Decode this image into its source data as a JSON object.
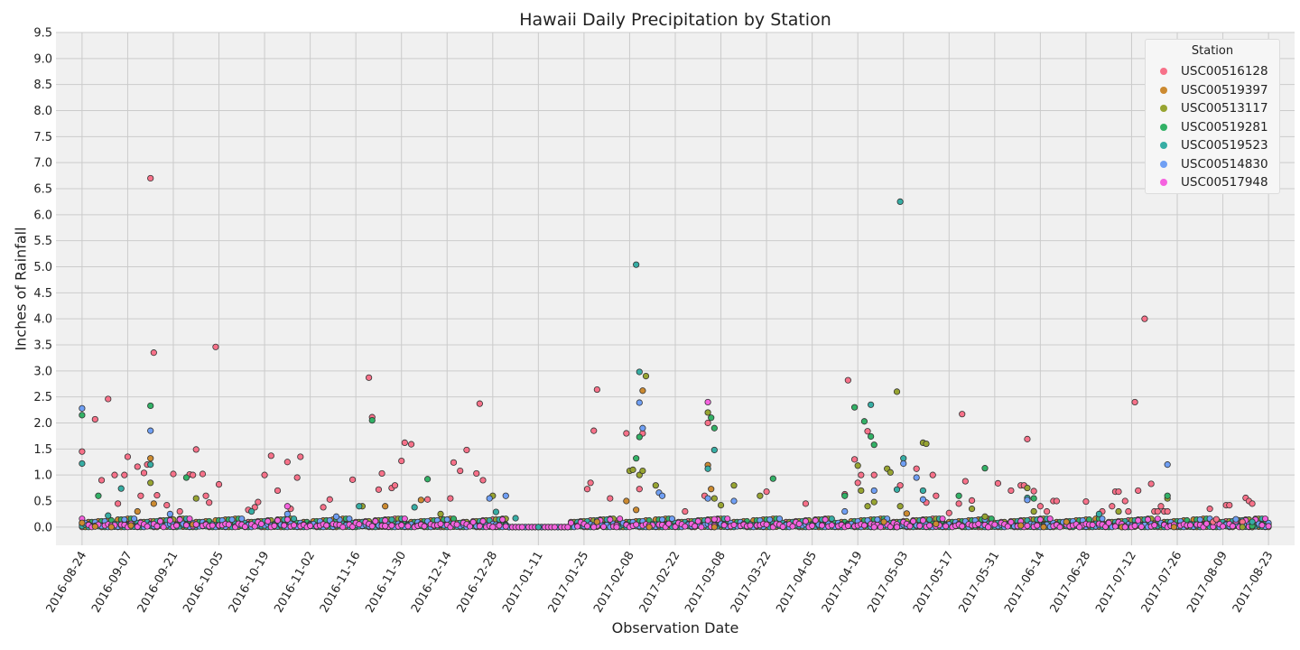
{
  "chart_data": {
    "type": "scatter",
    "title": "Hawaii Daily Precipitation by Station",
    "xlabel": "Observation Date",
    "ylabel": "Inches of Rainfall",
    "xlim": [
      "2016-08-16",
      "2017-08-31"
    ],
    "ylim": [
      -0.35,
      9.5
    ],
    "yticks": [
      0.0,
      0.5,
      1.0,
      1.5,
      2.0,
      2.5,
      3.0,
      3.5,
      4.0,
      4.5,
      5.0,
      5.5,
      6.0,
      6.5,
      7.0,
      7.5,
      8.0,
      8.5,
      9.0,
      9.5
    ],
    "ytick_labels": [
      "0.0",
      "0.5",
      "1.0",
      "1.5",
      "2.0",
      "2.5",
      "3.0",
      "3.5",
      "4.0",
      "4.5",
      "5.0",
      "5.5",
      "6.0",
      "6.5",
      "7.0",
      "7.5",
      "8.0",
      "8.5",
      "9.0",
      "9.5"
    ],
    "xticks": [
      "2016-08-24",
      "2016-09-07",
      "2016-09-21",
      "2016-10-05",
      "2016-10-19",
      "2016-11-02",
      "2016-11-16",
      "2016-11-30",
      "2016-12-14",
      "2016-12-28",
      "2017-01-11",
      "2017-01-25",
      "2017-02-08",
      "2017-02-22",
      "2017-03-08",
      "2017-03-22",
      "2017-04-05",
      "2017-04-19",
      "2017-05-03",
      "2017-05-17",
      "2017-05-31",
      "2017-06-14",
      "2017-06-28",
      "2017-07-12",
      "2017-07-26",
      "2017-08-09",
      "2017-08-23"
    ],
    "grid": true,
    "legend": {
      "title": "Station",
      "placement": "top-right"
    },
    "series": [
      {
        "name": "USC00516128",
        "color": "#f77189",
        "points": [
          [
            "2016-08-24",
            1.45
          ],
          [
            "2016-08-28",
            2.07
          ],
          [
            "2016-08-30",
            0.9
          ],
          [
            "2016-09-01",
            2.46
          ],
          [
            "2016-09-03",
            1.0
          ],
          [
            "2016-09-04",
            0.45
          ],
          [
            "2016-09-06",
            1.0
          ],
          [
            "2016-09-07",
            1.35
          ],
          [
            "2016-09-10",
            1.16
          ],
          [
            "2016-09-11",
            0.6
          ],
          [
            "2016-09-12",
            1.04
          ],
          [
            "2016-09-13",
            1.2
          ],
          [
            "2016-09-14",
            6.7
          ],
          [
            "2016-09-15",
            3.35
          ],
          [
            "2016-09-16",
            0.61
          ],
          [
            "2016-09-19",
            0.42
          ],
          [
            "2016-09-21",
            1.02
          ],
          [
            "2016-09-23",
            0.3
          ],
          [
            "2016-09-26",
            1.01
          ],
          [
            "2016-09-27",
            1.0
          ],
          [
            "2016-09-28",
            1.49
          ],
          [
            "2016-09-30",
            1.02
          ],
          [
            "2016-10-01",
            0.6
          ],
          [
            "2016-10-02",
            0.47
          ],
          [
            "2016-10-04",
            3.46
          ],
          [
            "2016-10-05",
            0.82
          ],
          [
            "2016-10-14",
            0.33
          ],
          [
            "2016-10-16",
            0.38
          ],
          [
            "2016-10-17",
            0.48
          ],
          [
            "2016-10-19",
            1.0
          ],
          [
            "2016-10-21",
            1.37
          ],
          [
            "2016-10-23",
            0.7
          ],
          [
            "2016-10-26",
            1.25
          ],
          [
            "2016-10-27",
            0.35
          ],
          [
            "2016-10-29",
            0.95
          ],
          [
            "2016-10-30",
            1.35
          ],
          [
            "2016-11-06",
            0.38
          ],
          [
            "2016-11-08",
            0.53
          ],
          [
            "2016-11-15",
            0.91
          ],
          [
            "2016-11-20",
            2.87
          ],
          [
            "2016-11-21",
            2.11
          ],
          [
            "2016-11-23",
            0.72
          ],
          [
            "2016-11-24",
            1.03
          ],
          [
            "2016-11-27",
            0.75
          ],
          [
            "2016-11-28",
            0.8
          ],
          [
            "2016-11-30",
            1.27
          ],
          [
            "2016-12-01",
            1.62
          ],
          [
            "2016-12-03",
            1.59
          ],
          [
            "2016-12-08",
            0.53
          ],
          [
            "2016-12-15",
            0.55
          ],
          [
            "2016-12-16",
            1.24
          ],
          [
            "2016-12-18",
            1.08
          ],
          [
            "2016-12-20",
            1.48
          ],
          [
            "2016-12-23",
            1.03
          ],
          [
            "2016-12-24",
            2.37
          ],
          [
            "2016-12-25",
            0.9
          ],
          [
            "2017-01-26",
            0.73
          ],
          [
            "2017-01-27",
            0.85
          ],
          [
            "2017-01-28",
            1.85
          ],
          [
            "2017-01-29",
            2.64
          ],
          [
            "2017-02-02",
            0.55
          ],
          [
            "2017-02-07",
            1.8
          ],
          [
            "2017-02-11",
            0.73
          ],
          [
            "2017-02-12",
            1.8
          ],
          [
            "2017-02-25",
            0.3
          ],
          [
            "2017-03-03",
            0.6
          ],
          [
            "2017-03-04",
            2.0
          ],
          [
            "2017-03-22",
            0.68
          ],
          [
            "2017-04-03",
            0.45
          ],
          [
            "2017-04-15",
            0.63
          ],
          [
            "2017-04-16",
            2.82
          ],
          [
            "2017-04-18",
            1.3
          ],
          [
            "2017-04-19",
            0.85
          ],
          [
            "2017-04-20",
            1.0
          ],
          [
            "2017-04-22",
            1.84
          ],
          [
            "2017-04-24",
            1.0
          ],
          [
            "2017-05-02",
            0.8
          ],
          [
            "2017-05-07",
            1.12
          ],
          [
            "2017-05-10",
            0.47
          ],
          [
            "2017-05-12",
            1.0
          ],
          [
            "2017-05-13",
            0.6
          ],
          [
            "2017-05-17",
            0.27
          ],
          [
            "2017-05-20",
            0.45
          ],
          [
            "2017-05-21",
            2.17
          ],
          [
            "2017-05-22",
            0.88
          ],
          [
            "2017-05-24",
            0.51
          ],
          [
            "2017-06-01",
            0.84
          ],
          [
            "2017-06-05",
            0.7
          ],
          [
            "2017-06-08",
            0.8
          ],
          [
            "2017-06-09",
            0.8
          ],
          [
            "2017-06-10",
            1.69
          ],
          [
            "2017-06-12",
            0.69
          ],
          [
            "2017-06-14",
            0.4
          ],
          [
            "2017-06-16",
            0.3
          ],
          [
            "2017-06-18",
            0.5
          ],
          [
            "2017-06-19",
            0.5
          ],
          [
            "2017-06-28",
            0.49
          ],
          [
            "2017-07-03",
            0.3
          ],
          [
            "2017-07-06",
            0.4
          ],
          [
            "2017-07-07",
            0.68
          ],
          [
            "2017-07-08",
            0.68
          ],
          [
            "2017-07-10",
            0.5
          ],
          [
            "2017-07-11",
            0.3
          ],
          [
            "2017-07-13",
            2.4
          ],
          [
            "2017-07-14",
            0.7
          ],
          [
            "2017-07-16",
            4.0
          ],
          [
            "2017-07-18",
            0.83
          ],
          [
            "2017-07-19",
            0.3
          ],
          [
            "2017-07-20",
            0.3
          ],
          [
            "2017-07-21",
            0.4
          ],
          [
            "2017-07-22",
            0.3
          ],
          [
            "2017-07-23",
            0.3
          ],
          [
            "2017-08-05",
            0.35
          ],
          [
            "2017-08-06",
            0.1
          ],
          [
            "2017-08-07",
            0.15
          ],
          [
            "2017-08-10",
            0.42
          ],
          [
            "2017-08-11",
            0.42
          ],
          [
            "2017-08-15",
            0.1
          ],
          [
            "2017-08-16",
            0.56
          ],
          [
            "2017-08-17",
            0.5
          ],
          [
            "2017-08-18",
            0.45
          ]
        ]
      },
      {
        "name": "USC00519397",
        "color": "#cc8a30",
        "points": [
          [
            "2016-08-24",
            0.08
          ],
          [
            "2016-08-28",
            0.01
          ],
          [
            "2016-09-02",
            0.0
          ],
          [
            "2016-09-08",
            0.03
          ],
          [
            "2016-09-10",
            0.3
          ],
          [
            "2016-09-14",
            1.32
          ],
          [
            "2016-09-15",
            0.45
          ],
          [
            "2016-09-27",
            0.05
          ],
          [
            "2016-11-25",
            0.4
          ],
          [
            "2016-12-06",
            0.52
          ],
          [
            "2017-01-29",
            0.1
          ],
          [
            "2017-02-07",
            0.5
          ],
          [
            "2017-02-10",
            0.33
          ],
          [
            "2017-02-12",
            2.62
          ],
          [
            "2017-02-14",
            0.0
          ],
          [
            "2017-03-04",
            1.19
          ],
          [
            "2017-03-05",
            0.73
          ],
          [
            "2017-03-06",
            0.0
          ],
          [
            "2017-04-27",
            0.1
          ],
          [
            "2017-05-01",
            0.0
          ],
          [
            "2017-05-04",
            0.26
          ],
          [
            "2017-05-13",
            0.06
          ],
          [
            "2017-06-08",
            0.03
          ],
          [
            "2017-06-15",
            0.0
          ],
          [
            "2017-06-22",
            0.1
          ],
          [
            "2017-07-09",
            0.0
          ],
          [
            "2017-07-25",
            0.0
          ],
          [
            "2017-08-18",
            0.0
          ]
        ]
      },
      {
        "name": "USC00513117",
        "color": "#97a431",
        "points": [
          [
            "2016-09-14",
            0.85
          ],
          [
            "2016-09-28",
            0.55
          ],
          [
            "2016-11-18",
            0.4
          ],
          [
            "2016-12-12",
            0.25
          ],
          [
            "2016-12-28",
            0.6
          ],
          [
            "2017-02-08",
            1.08
          ],
          [
            "2017-02-09",
            1.1
          ],
          [
            "2017-02-11",
            1.0
          ],
          [
            "2017-02-12",
            1.08
          ],
          [
            "2017-02-13",
            2.9
          ],
          [
            "2017-02-16",
            0.8
          ],
          [
            "2017-03-04",
            2.2
          ],
          [
            "2017-03-06",
            0.55
          ],
          [
            "2017-03-08",
            0.42
          ],
          [
            "2017-03-12",
            0.8
          ],
          [
            "2017-03-20",
            0.6
          ],
          [
            "2017-04-19",
            1.18
          ],
          [
            "2017-04-20",
            0.7
          ],
          [
            "2017-04-22",
            0.4
          ],
          [
            "2017-04-24",
            0.48
          ],
          [
            "2017-04-28",
            1.12
          ],
          [
            "2017-04-29",
            1.05
          ],
          [
            "2017-05-01",
            2.6
          ],
          [
            "2017-05-02",
            0.4
          ],
          [
            "2017-05-09",
            1.62
          ],
          [
            "2017-05-10",
            1.6
          ],
          [
            "2017-05-24",
            0.35
          ],
          [
            "2017-05-28",
            0.2
          ],
          [
            "2017-06-10",
            0.75
          ],
          [
            "2017-06-12",
            0.3
          ],
          [
            "2017-07-08",
            0.3
          ],
          [
            "2017-07-23",
            0.55
          ],
          [
            "2017-08-15",
            0.0
          ]
        ]
      },
      {
        "name": "USC00519281",
        "color": "#32b166",
        "points": [
          [
            "2016-08-24",
            2.15
          ],
          [
            "2016-08-29",
            0.6
          ],
          [
            "2016-09-14",
            2.33
          ],
          [
            "2016-09-25",
            0.95
          ],
          [
            "2016-11-21",
            2.05
          ],
          [
            "2016-12-08",
            0.92
          ],
          [
            "2017-02-10",
            1.32
          ],
          [
            "2017-02-11",
            1.73
          ],
          [
            "2017-03-05",
            2.1
          ],
          [
            "2017-03-06",
            1.9
          ],
          [
            "2017-03-24",
            0.93
          ],
          [
            "2017-04-15",
            0.6
          ],
          [
            "2017-04-18",
            2.3
          ],
          [
            "2017-04-21",
            2.03
          ],
          [
            "2017-04-23",
            1.74
          ],
          [
            "2017-04-24",
            1.58
          ],
          [
            "2017-05-20",
            0.6
          ],
          [
            "2017-05-28",
            1.13
          ],
          [
            "2017-06-12",
            0.55
          ],
          [
            "2017-07-23",
            0.6
          ],
          [
            "2017-08-18",
            0.02
          ]
        ]
      },
      {
        "name": "USC00519523",
        "color": "#36ada4",
        "points": [
          [
            "2016-08-24",
            1.22
          ],
          [
            "2016-09-01",
            0.22
          ],
          [
            "2016-09-05",
            0.74
          ],
          [
            "2016-09-14",
            1.2
          ],
          [
            "2016-10-15",
            0.3
          ],
          [
            "2016-11-17",
            0.4
          ],
          [
            "2016-12-04",
            0.38
          ],
          [
            "2016-12-29",
            0.29
          ],
          [
            "2017-01-04",
            0.17
          ],
          [
            "2017-01-11",
            0.0
          ],
          [
            "2017-02-10",
            5.04
          ],
          [
            "2017-02-11",
            2.98
          ],
          [
            "2017-03-04",
            1.12
          ],
          [
            "2017-03-06",
            1.48
          ],
          [
            "2017-04-23",
            2.35
          ],
          [
            "2017-05-01",
            0.72
          ],
          [
            "2017-05-02",
            6.25
          ],
          [
            "2017-05-03",
            1.32
          ],
          [
            "2017-05-09",
            0.7
          ],
          [
            "2017-06-10",
            0.56
          ],
          [
            "2017-07-02",
            0.25
          ],
          [
            "2017-08-18",
            0.1
          ]
        ]
      },
      {
        "name": "USC00514830",
        "color": "#6f9ff4",
        "points": [
          [
            "2016-08-24",
            2.28
          ],
          [
            "2016-09-14",
            1.85
          ],
          [
            "2016-09-20",
            0.25
          ],
          [
            "2016-10-26",
            0.25
          ],
          [
            "2016-11-10",
            0.2
          ],
          [
            "2016-12-27",
            0.55
          ],
          [
            "2017-01-01",
            0.6
          ],
          [
            "2017-02-11",
            2.39
          ],
          [
            "2017-02-12",
            1.9
          ],
          [
            "2017-02-17",
            0.66
          ],
          [
            "2017-02-18",
            0.6
          ],
          [
            "2017-03-04",
            0.55
          ],
          [
            "2017-03-12",
            0.5
          ],
          [
            "2017-04-15",
            0.3
          ],
          [
            "2017-04-24",
            0.7
          ],
          [
            "2017-05-03",
            1.22
          ],
          [
            "2017-05-07",
            0.95
          ],
          [
            "2017-05-09",
            0.53
          ],
          [
            "2017-06-10",
            0.52
          ],
          [
            "2017-07-23",
            1.2
          ],
          [
            "2017-08-13",
            0.15
          ]
        ]
      },
      {
        "name": "USC00517948",
        "color": "#f562df",
        "points": [
          [
            "2016-09-28",
            0.05
          ],
          [
            "2016-10-26",
            0.4
          ],
          [
            "2016-11-25",
            0.02
          ],
          [
            "2016-12-28",
            0.0
          ],
          [
            "2017-01-28",
            0.0
          ],
          [
            "2017-02-04",
            0.0
          ],
          [
            "2017-03-04",
            2.4
          ],
          [
            "2017-03-06",
            0.15
          ],
          [
            "2017-04-24",
            0.0
          ],
          [
            "2017-05-01",
            0.0
          ],
          [
            "2017-05-29",
            0.0
          ],
          [
            "2017-06-26",
            0.0
          ],
          [
            "2017-07-10",
            0.0
          ]
        ]
      }
    ]
  }
}
